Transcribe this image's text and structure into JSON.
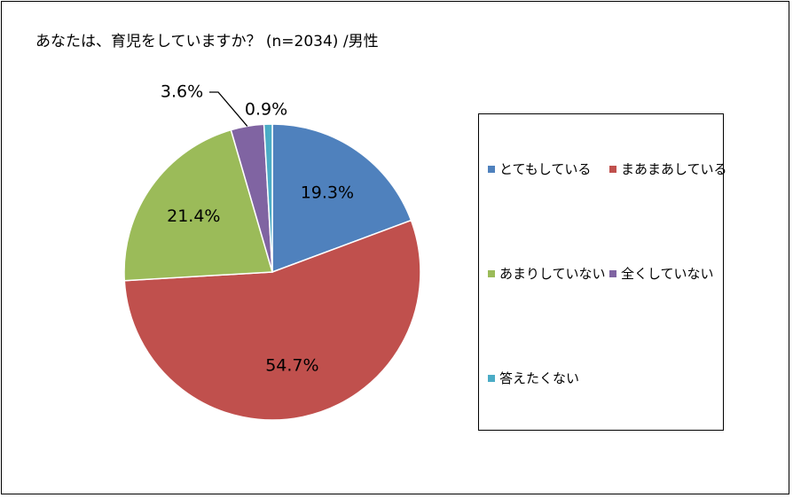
{
  "chart_data": {
    "type": "pie",
    "title": "あなたは、育児をしていますか？ (n=2034) /男性",
    "categories": [
      "とてもしている",
      "まあまあしている",
      "あまりしていない",
      "全くしていない",
      "答えたくない"
    ],
    "values": [
      19.3,
      54.7,
      21.4,
      3.6,
      0.9
    ],
    "data_labels": [
      "19.3%",
      "54.7%",
      "21.4%",
      "3.6%",
      "0.9%"
    ],
    "colors": [
      "#4F81BD",
      "#C0504D",
      "#9BBB59",
      "#8064A2",
      "#4BACC6"
    ],
    "start_angle": "12 o'clock",
    "direction": "clockwise",
    "legend_position": "right"
  }
}
